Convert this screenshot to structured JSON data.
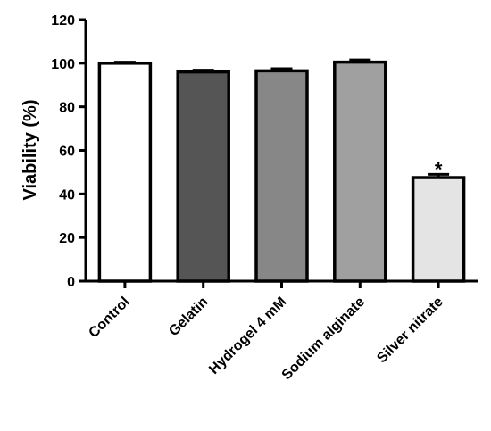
{
  "chart_data": {
    "type": "bar",
    "ylabel": "Viability (%)",
    "xlabel": "",
    "ylim": [
      0,
      120
    ],
    "yticks": [
      0,
      20,
      40,
      60,
      80,
      100,
      120
    ],
    "grid": false,
    "categories": [
      "Control",
      "Gelatin",
      "Hydrogel 4 mM",
      "Sodium alginate",
      "Silver nitrate"
    ],
    "values": [
      100,
      96,
      96.5,
      100.5,
      47.5
    ],
    "errors": [
      0.5,
      0.8,
      1.0,
      1.0,
      1.5
    ],
    "bar_colors": [
      "#ffffff",
      "#555555",
      "#878787",
      "#a0a0a0",
      "#e4e4e4"
    ],
    "annotations": [
      "",
      "",
      "",
      "",
      "*"
    ]
  }
}
